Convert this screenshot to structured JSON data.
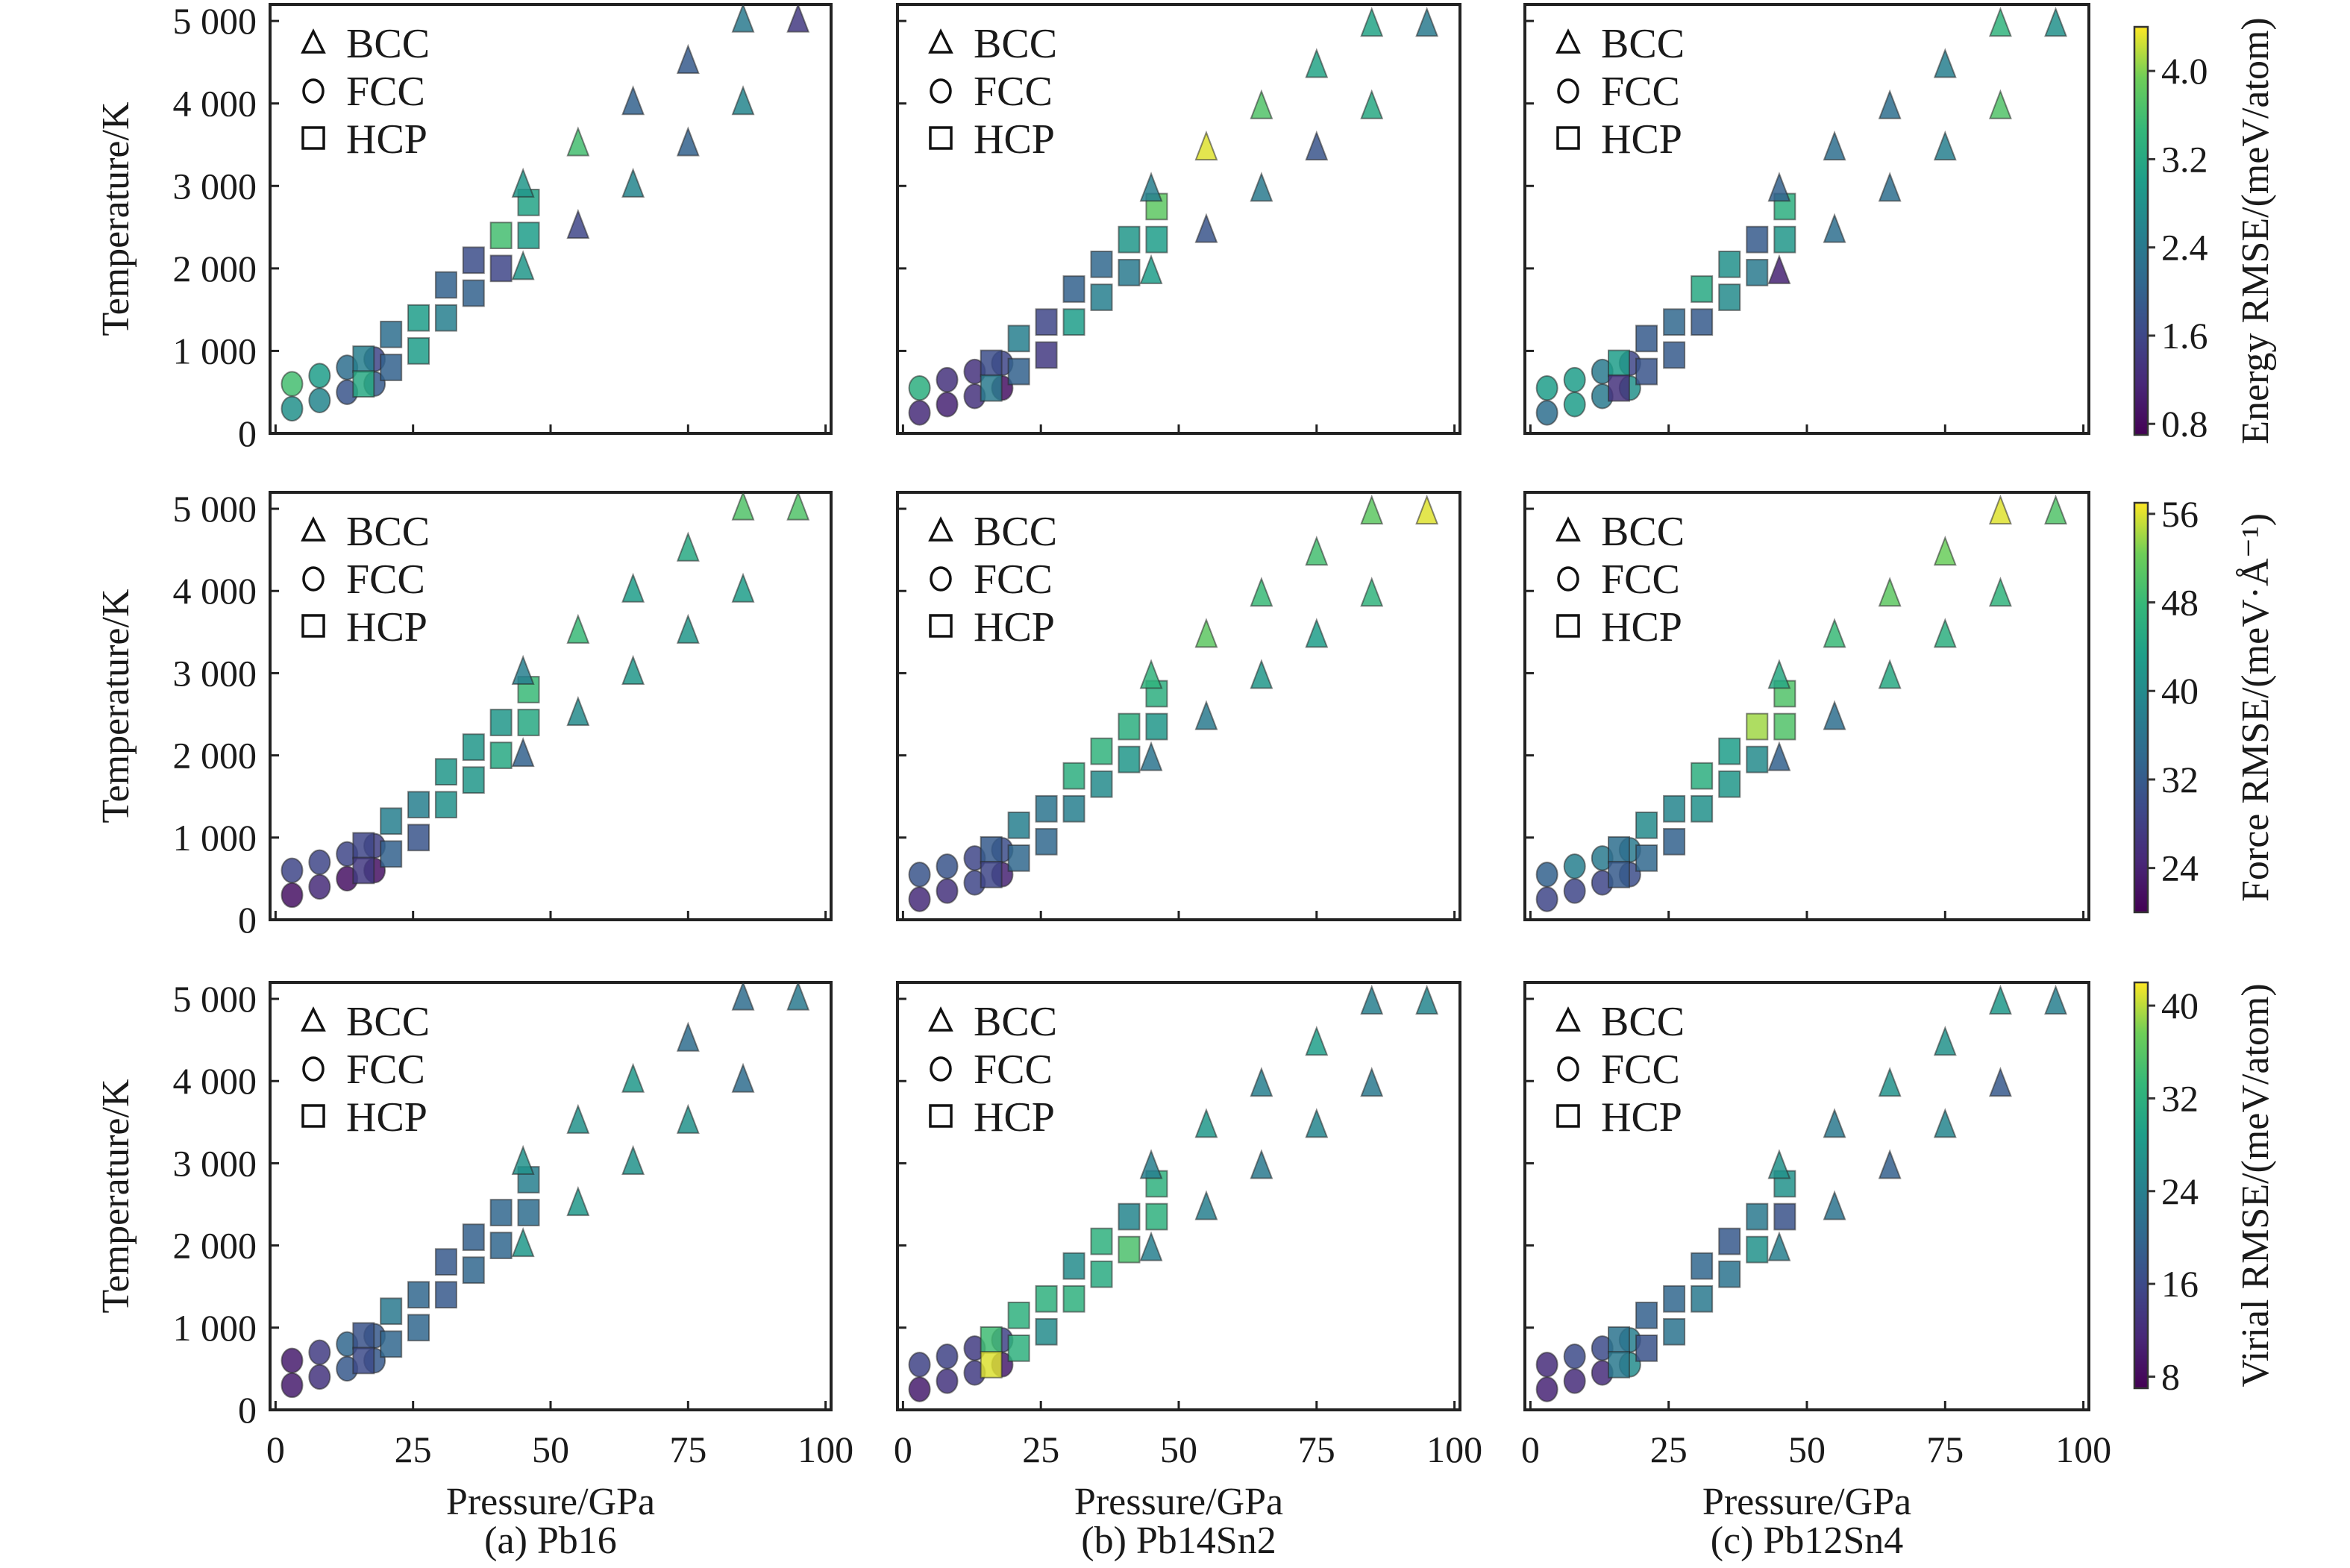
{
  "chart_data": {
    "type": "scatter",
    "title": "",
    "layout": "3x3 grid of scatter panels (rows: energy, force, virial RMSE; columns: Pb16, Pb14Sn2, Pb12Sn4)",
    "xlabel": "Pressure/GPa",
    "ylabel": "Temperature/K",
    "xlim": [
      -1,
      101
    ],
    "ylim": [
      0,
      5200
    ],
    "xticks": [
      0,
      25,
      50,
      75,
      100
    ],
    "xtick_labels": [
      "0",
      "25",
      "50",
      "75",
      "100"
    ],
    "yticks": [
      0,
      1000,
      2000,
      3000,
      4000,
      5000
    ],
    "ytick_labels": [
      "0",
      "1 000",
      "2 000",
      "3 000",
      "4 000",
      "5 000"
    ],
    "grid": false,
    "legend": {
      "placement": "top-left",
      "entries": [
        {
          "label": "BCC",
          "marker": "triangle"
        },
        {
          "label": "FCC",
          "marker": "circle"
        },
        {
          "label": "HCP",
          "marker": "square"
        }
      ]
    },
    "columns": [
      {
        "id": "a",
        "caption": "(a) Pb16"
      },
      {
        "id": "b",
        "caption": "(b) Pb14Sn2"
      },
      {
        "id": "c",
        "caption": "(c) Pb12Sn4"
      }
    ],
    "rows": [
      {
        "id": "energy",
        "colorbar_label": "Energy RMSE/(meV/atom)",
        "clim": [
          0.7,
          4.4
        ],
        "cticks": [
          0.8,
          1.6,
          2.4,
          3.2,
          4.0
        ],
        "ctick_labels": [
          "0.8",
          "1.6",
          "2.4",
          "3.2",
          "4.0"
        ]
      },
      {
        "id": "force",
        "colorbar_label": "Force RMSE/(meV·Å⁻¹)",
        "clim": [
          20,
          57
        ],
        "cticks": [
          24,
          32,
          40,
          48,
          56
        ],
        "ctick_labels": [
          "24",
          "32",
          "40",
          "48",
          "56"
        ]
      },
      {
        "id": "virial",
        "colorbar_label": "Virial RMSE/(meV/atom)",
        "clim": [
          7,
          42
        ],
        "cticks": [
          8,
          16,
          24,
          32,
          40
        ],
        "ctick_labels": [
          "8",
          "16",
          "24",
          "32",
          "40"
        ]
      }
    ],
    "colormap": "viridis",
    "points": {
      "a": {
        "FCC": [
          [
            3,
            600
          ],
          [
            3,
            300
          ],
          [
            8,
            700
          ],
          [
            8,
            400
          ],
          [
            13,
            800
          ],
          [
            13,
            500
          ],
          [
            18,
            900
          ],
          [
            18,
            600
          ]
        ],
        "HCP": [
          [
            16,
            900
          ],
          [
            16,
            600
          ],
          [
            21,
            1200
          ],
          [
            21,
            800
          ],
          [
            26,
            1400
          ],
          [
            26,
            1000
          ],
          [
            31,
            1800
          ],
          [
            31,
            1400
          ],
          [
            36,
            2100
          ],
          [
            36,
            1700
          ],
          [
            41,
            2400
          ],
          [
            41,
            2000
          ],
          [
            46,
            2400
          ],
          [
            46,
            2800
          ]
        ],
        "BCC": [
          [
            45,
            2000
          ],
          [
            45,
            3000
          ],
          [
            55,
            2500
          ],
          [
            55,
            3500
          ],
          [
            65,
            3000
          ],
          [
            65,
            4000
          ],
          [
            75,
            3500
          ],
          [
            75,
            4500
          ],
          [
            85,
            4000
          ],
          [
            85,
            5000
          ],
          [
            95,
            5000
          ]
        ]
      },
      "b": {
        "FCC": [
          [
            3,
            550
          ],
          [
            3,
            250
          ],
          [
            8,
            650
          ],
          [
            8,
            350
          ],
          [
            13,
            750
          ],
          [
            13,
            450
          ],
          [
            18,
            850
          ],
          [
            18,
            550
          ]
        ],
        "HCP": [
          [
            16,
            850
          ],
          [
            16,
            550
          ],
          [
            21,
            1150
          ],
          [
            21,
            750
          ],
          [
            26,
            1350
          ],
          [
            26,
            950
          ],
          [
            31,
            1750
          ],
          [
            31,
            1350
          ],
          [
            36,
            2050
          ],
          [
            36,
            1650
          ],
          [
            41,
            2350
          ],
          [
            41,
            1950
          ],
          [
            46,
            2350
          ],
          [
            46,
            2750
          ]
        ],
        "BCC": [
          [
            45,
            1950
          ],
          [
            45,
            2950
          ],
          [
            55,
            2450
          ],
          [
            55,
            3450
          ],
          [
            65,
            2950
          ],
          [
            65,
            3950
          ],
          [
            75,
            3450
          ],
          [
            75,
            4450
          ],
          [
            85,
            3950
          ],
          [
            85,
            4950
          ],
          [
            95,
            4950
          ]
        ]
      },
      "c": {
        "FCC": [
          [
            3,
            550
          ],
          [
            3,
            250
          ],
          [
            8,
            650
          ],
          [
            8,
            350
          ],
          [
            13,
            750
          ],
          [
            13,
            450
          ],
          [
            18,
            850
          ],
          [
            18,
            550
          ]
        ],
        "HCP": [
          [
            16,
            850
          ],
          [
            16,
            550
          ],
          [
            21,
            1150
          ],
          [
            21,
            750
          ],
          [
            26,
            1350
          ],
          [
            26,
            950
          ],
          [
            31,
            1750
          ],
          [
            31,
            1350
          ],
          [
            36,
            2050
          ],
          [
            36,
            1650
          ],
          [
            41,
            2350
          ],
          [
            41,
            1950
          ],
          [
            46,
            2350
          ],
          [
            46,
            2750
          ]
        ],
        "BCC": [
          [
            45,
            1950
          ],
          [
            45,
            2950
          ],
          [
            55,
            2450
          ],
          [
            55,
            3450
          ],
          [
            65,
            2950
          ],
          [
            65,
            3950
          ],
          [
            75,
            3450
          ],
          [
            75,
            4450
          ],
          [
            85,
            3950
          ],
          [
            85,
            4950
          ],
          [
            95,
            4950
          ]
        ]
      }
    },
    "values": {
      "energy": {
        "a": {
          "FCC": [
            3.6,
            2.8,
            3.0,
            2.6,
            2.2,
            1.8,
            1.6,
            1.9
          ],
          "HCP": [
            2.5,
            3.2,
            2.2,
            2.0,
            3.0,
            3.0,
            2.0,
            2.5,
            1.7,
            2.0,
            3.6,
            1.6,
            3.0,
            3.1
          ],
          "BCC": [
            2.9,
            2.9,
            1.6,
            3.6,
            2.6,
            2.0,
            2.0,
            1.9,
            2.6,
            2.4,
            1.4
          ]
        },
        "b": {
          "FCC": [
            3.3,
            1.2,
            1.3,
            1.1,
            1.3,
            1.3,
            1.6,
            0.9
          ],
          "HCP": [
            1.7,
            2.4,
            2.5,
            2.0,
            1.6,
            1.4,
            2.0,
            3.0,
            2.1,
            2.5,
            2.9,
            2.4,
            3.0,
            3.8
          ],
          "BCC": [
            3.0,
            2.5,
            1.8,
            4.3,
            2.4,
            3.7,
            1.8,
            3.1,
            3.2,
            3.1,
            2.4
          ]
        },
        "c": {
          "FCC": [
            3.0,
            2.2,
            3.0,
            3.0,
            2.4,
            2.4,
            1.6,
            2.8
          ],
          "HCP": [
            3.0,
            1.3,
            1.9,
            1.8,
            2.1,
            1.9,
            3.2,
            1.9,
            2.8,
            2.7,
            1.9,
            2.4,
            2.9,
            3.3
          ],
          "BCC": [
            1.1,
            2.0,
            2.2,
            2.2,
            2.2,
            2.2,
            2.5,
            2.5,
            3.7,
            3.4,
            2.8
          ]
        }
      },
      "force": {
        "a": {
          "FCC": [
            29,
            22,
            29,
            25,
            29,
            22,
            28,
            22
          ],
          "HCP": [
            29,
            27,
            38,
            33,
            38,
            31,
            42,
            41,
            42,
            42,
            42,
            45,
            45,
            48
          ],
          "BCC": [
            33,
            38,
            40,
            48,
            42,
            43,
            42,
            45,
            43,
            50,
            50
          ]
        },
        "b": {
          "FCC": [
            31,
            25,
            31,
            26,
            29,
            29,
            30,
            24
          ],
          "HCP": [
            32,
            29,
            38,
            34,
            36,
            34,
            46,
            38,
            47,
            40,
            46,
            42,
            42,
            46
          ],
          "BCC": [
            36,
            47,
            37,
            51,
            42,
            48,
            43,
            49,
            47,
            51,
            56
          ]
        },
        "c": {
          "FCC": [
            33,
            29,
            38,
            29,
            37,
            29,
            37,
            30
          ],
          "HCP": [
            35,
            32,
            40,
            34,
            39,
            33,
            46,
            41,
            43,
            42,
            54,
            40,
            50,
            50
          ],
          "BCC": [
            33,
            45,
            35,
            48,
            45,
            51,
            46,
            52,
            47,
            56,
            50
          ]
        }
      },
      "virial": {
        "a": {
          "FCC": [
            10,
            10,
            14,
            13,
            20,
            18,
            18,
            18
          ],
          "HCP": [
            17,
            16,
            23,
            20,
            20,
            20,
            18,
            18,
            19,
            20,
            20,
            20,
            21,
            24
          ],
          "BCC": [
            28,
            27,
            28,
            27,
            27,
            28,
            27,
            21,
            21,
            21,
            23
          ]
        },
        "b": {
          "FCC": [
            15,
            10,
            15,
            13,
            14,
            14,
            15,
            10
          ],
          "HCP": [
            34,
            41,
            32,
            32,
            32,
            26,
            26,
            32,
            32,
            31,
            25,
            35,
            32,
            32
          ],
          "BCC": [
            24,
            24,
            24,
            28,
            23,
            24,
            25,
            29,
            23,
            24,
            25
          ]
        },
        "c": {
          "FCC": [
            12,
            11,
            16,
            12,
            16,
            12,
            24,
            26
          ],
          "HCP": [
            22,
            23,
            19,
            17,
            20,
            22,
            20,
            23,
            18,
            22,
            23,
            27,
            17,
            27
          ],
          "BCC": [
            24,
            27,
            22,
            23,
            19,
            27,
            25,
            27,
            18,
            28,
            24
          ]
        }
      }
    }
  }
}
